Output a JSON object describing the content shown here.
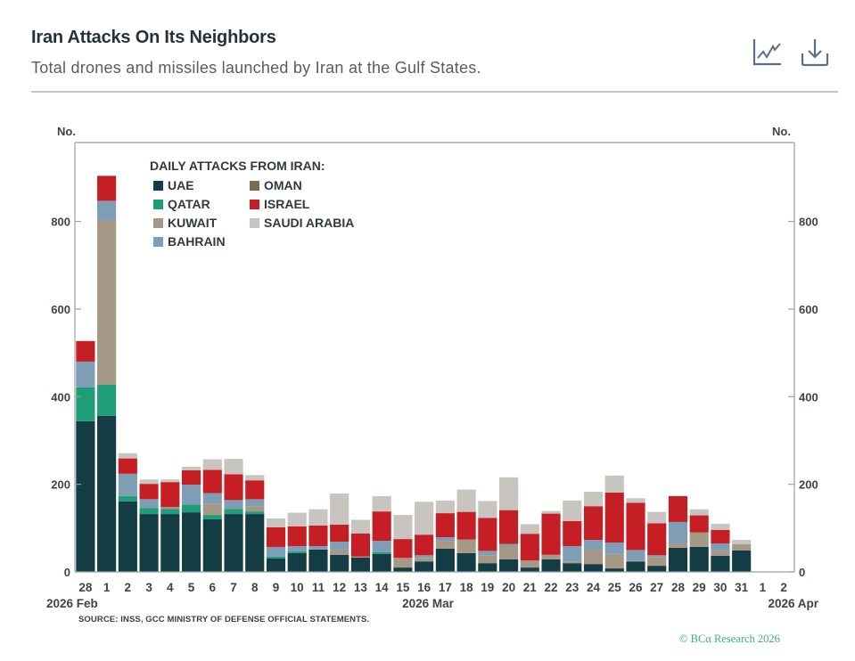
{
  "header": {
    "title": "Iran Attacks On Its Neighbors",
    "subtitle": "Total drones and missiles launched by Iran at the Gulf States.",
    "icons": [
      "line-chart-icon",
      "download-icon"
    ]
  },
  "chart_data": {
    "type": "bar",
    "stacked": true,
    "title": "Iran Attacks On Its Neighbors",
    "subtitle": "Total drones and missiles launched by Iran at the Gulf States.",
    "ylabel_left": "No.",
    "ylabel_right": "No.",
    "xlabel": "",
    "ylim": [
      0,
      980
    ],
    "yticks": [
      0,
      200,
      400,
      600,
      800
    ],
    "grid": false,
    "legend_title": "DAILY ATTACKS FROM IRAN:",
    "legend_position": "top-left",
    "categories": [
      "28",
      "1",
      "2",
      "3",
      "4",
      "5",
      "6",
      "7",
      "8",
      "9",
      "10",
      "11",
      "12",
      "13",
      "14",
      "15",
      "16",
      "17",
      "18",
      "19",
      "20",
      "21",
      "22",
      "23",
      "24",
      "25",
      "26",
      "27",
      "28",
      "29",
      "30",
      "31",
      "1",
      "2"
    ],
    "period_labels": [
      "2026 Feb",
      "2026 Mar",
      "2026 Apr"
    ],
    "series": [
      {
        "name": "UAE",
        "legend_label": "UAE",
        "color": "#143c45",
        "values": [
          344,
          356,
          161,
          132,
          132,
          136,
          120,
          132,
          132,
          31,
          43,
          51,
          39,
          33,
          41,
          10,
          24,
          53,
          43,
          20,
          29,
          10,
          29,
          20,
          18,
          8,
          24,
          14,
          55,
          57,
          37,
          49,
          0,
          0
        ]
      },
      {
        "name": "Qatar",
        "legend_label": "QATAR",
        "color": "#1f9c78",
        "values": [
          77,
          71,
          12,
          14,
          12,
          18,
          10,
          12,
          6,
          4,
          4,
          0,
          0,
          0,
          4,
          0,
          0,
          0,
          0,
          0,
          0,
          0,
          0,
          0,
          0,
          0,
          0,
          0,
          0,
          0,
          0,
          0,
          0,
          0
        ]
      },
      {
        "name": "Kuwait",
        "legend_label": "KUWAIT",
        "color": "#a69887",
        "values": [
          0,
          375,
          0,
          0,
          4,
          0,
          26,
          0,
          12,
          0,
          0,
          0,
          12,
          2,
          0,
          22,
          8,
          18,
          31,
          18,
          31,
          16,
          10,
          4,
          33,
          33,
          2,
          20,
          10,
          33,
          12,
          14,
          0,
          0
        ]
      },
      {
        "name": "Bahrain",
        "legend_label": "BAHRAIN",
        "color": "#7f9db5",
        "values": [
          59,
          45,
          51,
          20,
          0,
          45,
          24,
          20,
          16,
          22,
          12,
          8,
          18,
          0,
          26,
          0,
          6,
          8,
          0,
          10,
          4,
          0,
          0,
          35,
          22,
          26,
          24,
          4,
          49,
          0,
          16,
          0,
          0,
          0
        ]
      },
      {
        "name": "Oman",
        "legend_label": "OMAN",
        "color": "#7b6a58",
        "values": [
          0,
          0,
          0,
          0,
          0,
          0,
          0,
          0,
          0,
          0,
          0,
          0,
          0,
          0,
          0,
          0,
          0,
          0,
          0,
          0,
          0,
          0,
          0,
          0,
          0,
          0,
          0,
          0,
          0,
          0,
          0,
          0,
          0,
          0
        ]
      },
      {
        "name": "Israel",
        "legend_label": "ISRAEL",
        "color": "#c51e25",
        "values": [
          47,
          57,
          35,
          35,
          57,
          33,
          53,
          59,
          43,
          45,
          45,
          47,
          39,
          53,
          67,
          43,
          47,
          55,
          63,
          75,
          77,
          61,
          94,
          57,
          77,
          114,
          108,
          73,
          59,
          39,
          31,
          0,
          0,
          0
        ]
      },
      {
        "name": "Saudi Arabia",
        "legend_label": "SAUDI ARABIA",
        "color": "#c8c4c0",
        "values": [
          0,
          0,
          12,
          10,
          6,
          8,
          24,
          35,
          12,
          20,
          31,
          37,
          71,
          31,
          35,
          55,
          75,
          29,
          51,
          39,
          75,
          22,
          6,
          47,
          33,
          39,
          10,
          26,
          0,
          14,
          14,
          10,
          0,
          0
        ]
      }
    ],
    "source": "SOURCE: INSS, GCC MINISTRY OF DEFENSE OFFICIAL STATEMENTS."
  },
  "footer": {
    "copyright": "© BCα Research 2026"
  }
}
